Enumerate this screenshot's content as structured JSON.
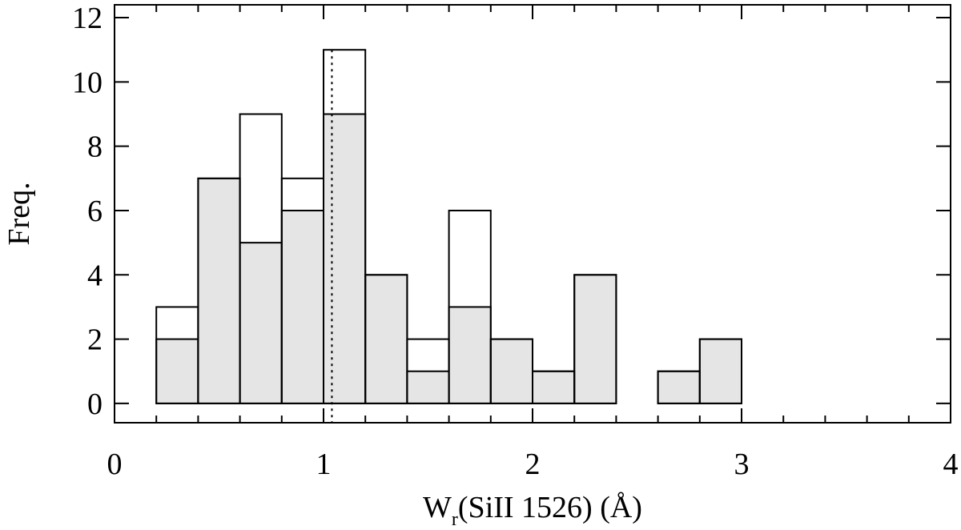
{
  "chart_data": {
    "type": "histogram",
    "xlabel": {
      "main": "W",
      "sub": "r",
      "rest": "(SiII 1526) (Å)"
    },
    "ylabel": "Freq.",
    "xlim": [
      0,
      4
    ],
    "ylim": [
      -0.6,
      12.4
    ],
    "x_ticks": [
      "0",
      "1",
      "2",
      "3",
      "4"
    ],
    "y_ticks": [
      "0",
      "2",
      "4",
      "6",
      "8",
      "10",
      "12"
    ],
    "bin_edges": [
      0.2,
      0.4,
      0.6,
      0.8,
      1.0,
      1.2,
      1.4,
      1.6,
      1.8,
      2.0,
      2.2,
      2.4,
      2.6,
      2.8,
      3.0
    ],
    "series": [
      {
        "values": [
          3,
          7,
          9,
          7,
          11,
          4,
          2,
          6,
          2,
          1,
          4,
          0,
          1,
          2
        ],
        "fill": "none",
        "color": "#000000"
      },
      {
        "values": [
          2,
          7,
          5,
          6,
          9,
          4,
          1,
          3,
          2,
          1,
          4,
          0,
          1,
          2
        ],
        "fill": "#e5e5e5",
        "color": "#000000"
      }
    ],
    "reference_line": {
      "x": 1.04,
      "style": "dotted"
    },
    "grid": false,
    "legend": "none"
  }
}
